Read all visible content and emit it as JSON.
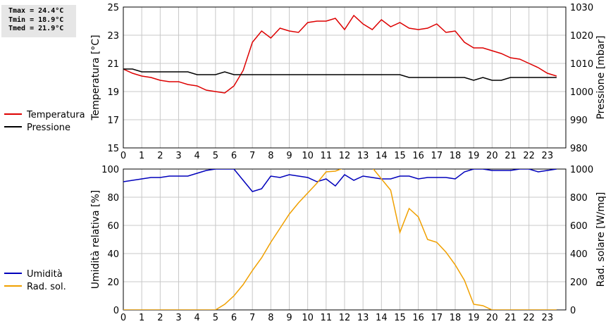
{
  "stats": {
    "tmax": "Tmax = 24.4°C",
    "tmin": "Tmin = 18.9°C",
    "tmed": "Tmed = 21.9°C"
  },
  "chart_data": [
    {
      "type": "line",
      "x_label_ticks": [
        "0",
        "1",
        "2",
        "3",
        "4",
        "5",
        "6",
        "7",
        "8",
        "9",
        "10",
        "11",
        "12",
        "13",
        "14",
        "15",
        "16",
        "17",
        "18",
        "19",
        "20",
        "21",
        "22",
        "23"
      ],
      "xlim": [
        0,
        24
      ],
      "y_left": {
        "label": "Temperatura [°C]",
        "ylim": [
          15,
          25
        ],
        "ticks": [
          "15",
          "17",
          "19",
          "21",
          "23",
          "25"
        ]
      },
      "y_right": {
        "label": "Pressione [mbar]",
        "ylim": [
          980,
          1030
        ],
        "ticks": [
          "980",
          "990",
          "1000",
          "1010",
          "1020",
          "1030"
        ]
      },
      "grid": true,
      "legend_position": "left",
      "series": [
        {
          "name": "Temperatura",
          "axis": "left",
          "color": "#dd0000",
          "x": [
            0,
            0.5,
            1,
            1.5,
            2,
            2.5,
            3,
            3.5,
            4,
            4.5,
            5,
            5.5,
            6,
            6.5,
            7,
            7.5,
            8,
            8.5,
            9,
            9.5,
            10,
            10.5,
            11,
            11.5,
            12,
            12.5,
            13,
            13.5,
            14,
            14.5,
            15,
            15.5,
            16,
            16.5,
            17,
            17.5,
            18,
            18.5,
            19,
            19.5,
            20,
            20.5,
            21,
            21.5,
            22,
            22.5,
            23,
            23.5
          ],
          "values": [
            20.6,
            20.3,
            20.1,
            20.0,
            19.8,
            19.7,
            19.7,
            19.5,
            19.4,
            19.1,
            19.0,
            18.9,
            19.4,
            20.5,
            22.5,
            23.3,
            22.8,
            23.5,
            23.3,
            23.2,
            23.9,
            24.0,
            24.0,
            24.2,
            23.4,
            24.4,
            23.8,
            23.4,
            24.1,
            23.6,
            23.9,
            23.5,
            23.4,
            23.5,
            23.8,
            23.2,
            23.3,
            22.5,
            22.1,
            22.1,
            21.9,
            21.7,
            21.4,
            21.3,
            21.0,
            20.7,
            20.3,
            20.1
          ]
        },
        {
          "name": "Pressione",
          "axis": "right",
          "color": "#000000",
          "x": [
            0,
            0.5,
            1,
            1.5,
            2,
            2.5,
            3,
            3.5,
            4,
            4.5,
            5,
            5.5,
            6,
            6.5,
            7,
            7.5,
            8,
            8.5,
            9,
            9.5,
            10,
            10.5,
            11,
            11.5,
            12,
            12.5,
            13,
            13.5,
            14,
            14.5,
            15,
            15.5,
            16,
            16.5,
            17,
            17.5,
            18,
            18.5,
            19,
            19.5,
            20,
            20.5,
            21,
            21.5,
            22,
            22.5,
            23,
            23.5
          ],
          "values": [
            1008,
            1008,
            1007,
            1007,
            1007,
            1007,
            1007,
            1007,
            1006,
            1006,
            1006,
            1007,
            1006,
            1006,
            1006,
            1006,
            1006,
            1006,
            1006,
            1006,
            1006,
            1006,
            1006,
            1006,
            1006,
            1006,
            1006,
            1006,
            1006,
            1006,
            1006,
            1005,
            1005,
            1005,
            1005,
            1005,
            1005,
            1005,
            1004,
            1005,
            1004,
            1004,
            1005,
            1005,
            1005,
            1005,
            1005,
            1005
          ]
        }
      ]
    },
    {
      "type": "line",
      "x_label_ticks": [
        "0",
        "1",
        "2",
        "3",
        "4",
        "5",
        "6",
        "7",
        "8",
        "9",
        "10",
        "11",
        "12",
        "13",
        "14",
        "15",
        "16",
        "17",
        "18",
        "19",
        "20",
        "21",
        "22",
        "23"
      ],
      "xlim": [
        0,
        24
      ],
      "y_left": {
        "label": "Umidità relativa [%]",
        "ylim": [
          0,
          100
        ],
        "ticks": [
          "0",
          "20",
          "40",
          "60",
          "80",
          "100"
        ]
      },
      "y_right": {
        "label": "Rad. solare [W/mq]",
        "ylim": [
          0,
          1000
        ],
        "ticks": [
          "0",
          "200",
          "400",
          "600",
          "800",
          "1000"
        ]
      },
      "grid": true,
      "legend_position": "left",
      "series": [
        {
          "name": "Umidità",
          "axis": "left",
          "color": "#0000bb",
          "x": [
            0,
            0.5,
            1,
            1.5,
            2,
            2.5,
            3,
            3.5,
            4,
            4.5,
            5,
            5.5,
            6,
            6.5,
            7,
            7.5,
            8,
            8.5,
            9,
            9.5,
            10,
            10.5,
            11,
            11.5,
            12,
            12.5,
            13,
            13.5,
            14,
            14.5,
            15,
            15.5,
            16,
            16.5,
            17,
            17.5,
            18,
            18.5,
            19,
            19.5,
            20,
            20.5,
            21,
            21.5,
            22,
            22.5,
            23,
            23.5
          ],
          "values": [
            91,
            92,
            93,
            94,
            94,
            95,
            95,
            95,
            97,
            99,
            100,
            100,
            100,
            92,
            84,
            86,
            95,
            94,
            96,
            95,
            94,
            91,
            93,
            88,
            96,
            92,
            95,
            94,
            93,
            93,
            95,
            95,
            93,
            94,
            94,
            94,
            93,
            98,
            100,
            100,
            99,
            99,
            99,
            100,
            100,
            98,
            99,
            100
          ]
        },
        {
          "name": "Rad. sol.",
          "axis": "right",
          "color": "#f0a000",
          "x": [
            0,
            0.5,
            1,
            1.5,
            2,
            2.5,
            3,
            3.5,
            4,
            4.5,
            5,
            5.5,
            6,
            6.5,
            7,
            7.5,
            8,
            8.5,
            9,
            9.5,
            10,
            10.5,
            11,
            11.5,
            12,
            12.5,
            13,
            13.5,
            14,
            14.5,
            15,
            15.5,
            16,
            16.5,
            17,
            17.5,
            18,
            18.5,
            19,
            19.5,
            20,
            20.5,
            21,
            21.5,
            22,
            22.5,
            23,
            23.5
          ],
          "values": [
            0,
            0,
            0,
            0,
            0,
            0,
            0,
            0,
            0,
            0,
            0,
            40,
            100,
            180,
            280,
            370,
            480,
            580,
            680,
            760,
            830,
            900,
            980,
            985,
            1010,
            1080,
            1030,
            1010,
            930,
            850,
            550,
            720,
            660,
            500,
            480,
            410,
            320,
            210,
            40,
            30,
            0,
            0,
            0,
            0,
            0,
            0,
            0,
            0
          ]
        }
      ]
    }
  ]
}
